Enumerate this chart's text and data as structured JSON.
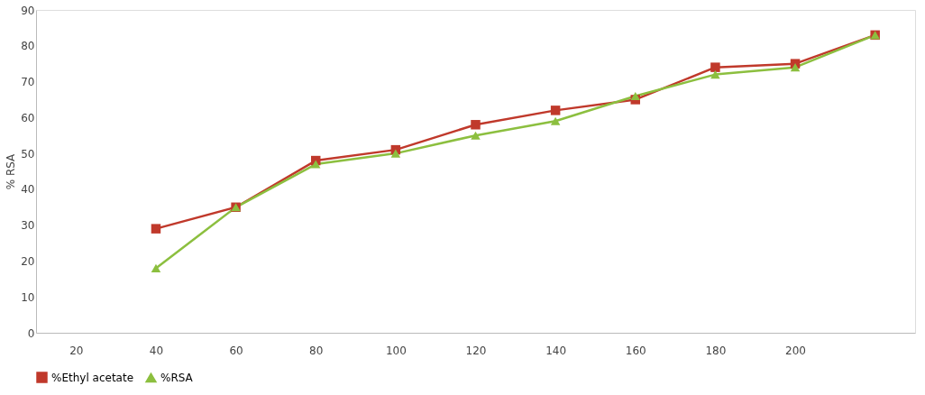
{
  "chart_data": {
    "type": "line",
    "ylabel": "% RSA",
    "categories": [
      "20",
      "40",
      "60",
      "80",
      "100",
      "120",
      "140",
      "160",
      "180",
      "200",
      null
    ],
    "series": [
      {
        "name": "%Ethyl acetate",
        "color": "#c0392b",
        "marker": "square",
        "values": [
          null,
          29,
          35,
          48,
          51,
          58,
          62,
          65,
          74,
          75,
          83
        ]
      },
      {
        "name": "%RSA",
        "color": "#8cbf3f",
        "marker": "triangle",
        "values": [
          null,
          18,
          35,
          47,
          50,
          55,
          59,
          66,
          72,
          74,
          83
        ]
      }
    ],
    "ylim": [
      0,
      90
    ],
    "yticks": [
      0,
      10,
      20,
      30,
      40,
      50,
      60,
      70,
      80,
      90
    ],
    "grid": false,
    "legend": "bottom"
  }
}
